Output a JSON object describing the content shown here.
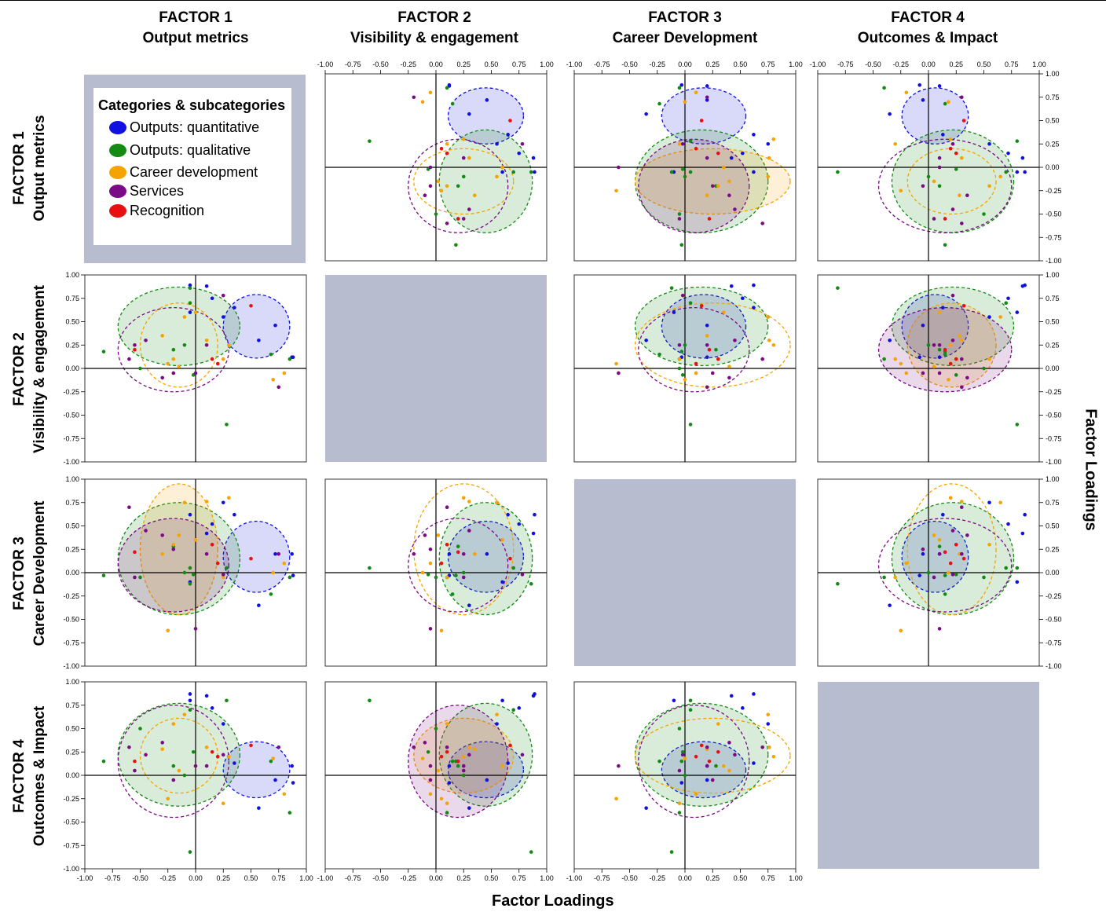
{
  "figure": {
    "col_titles": [
      {
        "factor": "FACTOR 1",
        "name": "Output metrics"
      },
      {
        "factor": "FACTOR 2",
        "name": "Visibility & engagement"
      },
      {
        "factor": "FACTOR 3",
        "name": "Career Development"
      },
      {
        "factor": "FACTOR 4",
        "name": "Outcomes & Impact"
      }
    ],
    "row_titles": [
      {
        "factor": "FACTOR 1",
        "name": "Output metrics"
      },
      {
        "factor": "FACTOR 2",
        "name": "Visibility & engagement"
      },
      {
        "factor": "FACTOR 3",
        "name": "Career Development"
      },
      {
        "factor": "FACTOR 4",
        "name": "Outcomes & Impact"
      }
    ],
    "xlabel": "Factor Loadings",
    "ylabel": "Factor Loadings",
    "legend": {
      "title": "Categories & subcategories",
      "items": [
        {
          "label": "Outputs: quantitative",
          "color": "#1010e0"
        },
        {
          "label": "Outputs: qualitative",
          "color": "#138a13"
        },
        {
          "label": "Career development",
          "color": "#f5a300"
        },
        {
          "label": "Services",
          "color": "#7a0a85"
        },
        {
          "label": "Recognition",
          "color": "#e81010"
        }
      ]
    },
    "empty_cell_color": "#b8bccf"
  },
  "chart_data": {
    "type": "scatter",
    "description_of_panels": "scatterplot matrix of factor loadings; row = y factor, col = x factor",
    "xlim": [
      -1,
      1
    ],
    "ylim": [
      -1,
      1
    ],
    "ticks": [
      -1.0,
      -0.75,
      -0.5,
      -0.25,
      0.0,
      0.25,
      0.5,
      0.75,
      1.0
    ],
    "tick_labels": [
      "-1.00",
      "-0.75",
      "-0.50",
      "-0.25",
      "0.00",
      "0.25",
      "0.50",
      "0.75",
      "1.00"
    ],
    "grid": false,
    "categories": [
      "Outputs: quantitative",
      "Outputs: qualitative",
      "Career development",
      "Services",
      "Recognition"
    ],
    "category_colors": [
      "#1010e0",
      "#138a13",
      "#f5a300",
      "#7a0a85",
      "#e81010"
    ],
    "loadings": {
      "Outputs: quantitative": [
        [
          -0.05,
          0.89,
          0.62,
          0.87
        ],
        [
          0.15,
          0.75,
          0.52,
          0.72
        ],
        [
          0.1,
          0.88,
          0.42,
          0.85
        ],
        [
          0.25,
          0.55,
          0.75,
          0.55
        ],
        [
          0.87,
          0.12,
          0.2,
          0.1
        ],
        [
          0.72,
          0.46,
          0.2,
          -0.05
        ],
        [
          0.57,
          0.3,
          -0.35,
          -0.35
        ],
        [
          0.88,
          0.12,
          -0.03,
          -0.08
        ],
        [
          0.35,
          0.65,
          0.62,
          0.13
        ],
        [
          -0.05,
          0.6,
          -0.1,
          0.8
        ]
      ],
      "Outputs: qualitative": [
        [
          -0.83,
          0.18,
          -0.03,
          0.15
        ],
        [
          -0.05,
          0.86,
          -0.12,
          -0.82
        ],
        [
          0.28,
          -0.6,
          0.05,
          0.8
        ],
        [
          -0.1,
          0.25,
          0.0,
          0.0
        ],
        [
          -0.2,
          0.2,
          0.28,
          0.1
        ],
        [
          -0.5,
          0.0,
          -0.05,
          0.5
        ],
        [
          -0.05,
          0.7,
          0.05,
          0.7
        ],
        [
          0.68,
          0.15,
          -0.23,
          0.15
        ],
        [
          0.85,
          0.1,
          -0.05,
          -0.4
        ],
        [
          -0.02,
          -0.07,
          -0.02,
          0.25
        ]
      ],
      "Career development": [
        [
          -0.1,
          0.55,
          0.75,
          0.65
        ],
        [
          -0.3,
          0.35,
          0.2,
          0.28
        ],
        [
          -0.25,
          0.05,
          -0.62,
          -0.25
        ],
        [
          0.1,
          0.3,
          0.76,
          0.3
        ],
        [
          -0.2,
          0.1,
          0.3,
          0.55
        ],
        [
          0.8,
          -0.05,
          0.1,
          -0.2
        ],
        [
          -0.15,
          0.02,
          0.4,
          0.05
        ],
        [
          0.0,
          0.6,
          0.35,
          0.1
        ],
        [
          0.25,
          0.1,
          -0.05,
          -0.3
        ],
        [
          0.3,
          0.25,
          0.8,
          0.2
        ],
        [
          0.7,
          -0.12,
          0.0,
          0.18
        ]
      ],
      "Services": [
        [
          -0.6,
          0.1,
          0.7,
          0.3
        ],
        [
          -0.45,
          0.3,
          0.45,
          0.22
        ],
        [
          0.25,
          0.78,
          -0.02,
          0.22
        ],
        [
          0.1,
          0.25,
          0.2,
          0.1
        ],
        [
          -0.3,
          -0.1,
          0.4,
          0.35
        ],
        [
          0.0,
          -0.05,
          -0.6,
          0.1
        ],
        [
          0.75,
          -0.2,
          0.2,
          0.3
        ],
        [
          -0.55,
          0.25,
          -0.05,
          0.05
        ],
        [
          -0.2,
          -0.05,
          0.25,
          -0.05
        ]
      ],
      "Recognition": [
        [
          0.5,
          0.67,
          0.15,
          0.32
        ],
        [
          -0.55,
          0.2,
          0.22,
          0.15
        ],
        [
          0.2,
          0.05,
          0.1,
          0.2
        ],
        [
          0.15,
          0.1,
          0.3,
          0.25
        ]
      ]
    },
    "ellipses": {
      "Outputs: quantitative": [
        0.55,
        0.45,
        0.17,
        0.06,
        0.3,
        0.34,
        0.38,
        0.3
      ],
      "Outputs: qualitative": [
        -0.15,
        0.45,
        0.15,
        0.22,
        0.55,
        0.42,
        0.6,
        0.55
      ],
      "Career development": [
        -0.15,
        0.25,
        0.25,
        0.21,
        0.35,
        0.45,
        0.7,
        0.4
      ],
      "Services": [
        -0.2,
        0.2,
        0.08,
        0.15,
        0.5,
        0.45,
        0.5,
        0.6
      ],
      "Recognition": [
        0.0,
        0.3,
        0.2,
        0.2,
        0.0,
        0.0,
        0.0,
        0.0
      ]
    },
    "ellipse_note": "per category: [cx1, cx2, cx3, cx4, rx1, rx2, rx3, rx4] in loading units"
  }
}
